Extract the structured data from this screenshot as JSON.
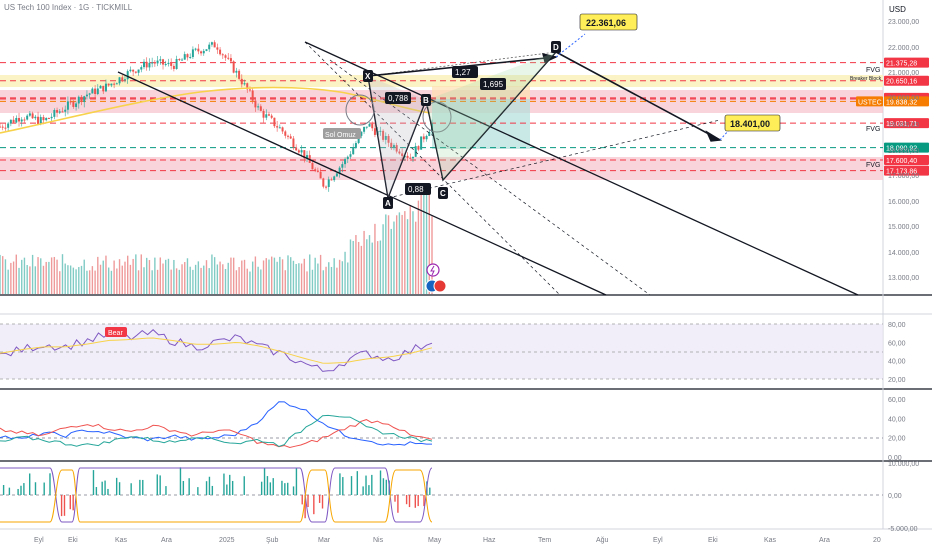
{
  "header": {
    "title": "US Tech 100 Index · 1G · TICKMILL",
    "currency": "USD"
  },
  "colors": {
    "up": "#26a69a",
    "down": "#ef5350",
    "sma": "#f7d24a",
    "rsi": "#7e57c2",
    "rsi_ma": "#f7d24a",
    "macd_blue": "#2962ff",
    "red_line": "#f23645",
    "green_line": "#089981",
    "zone_red": "#f7c6cd",
    "zone_yellow": "#fbf2c6",
    "target_bg": "#ffee58"
  },
  "chart_data": [
    {
      "type": "line",
      "name": "price",
      "title": "US Tech 100 Index · 1G · TICKMILL",
      "x_tick_labels": [
        "Eyl",
        "Eki",
        "Kas",
        "Ara",
        "2025",
        "Şub",
        "Mar",
        "Nis",
        "May",
        "Haz",
        "Tem",
        "Ağu",
        "Eyl",
        "Eki",
        "Kas",
        "Ara",
        "20"
      ],
      "y_tick_labels": [
        "23.000,00",
        "22.000,00",
        "21.000,00",
        "20.000,00",
        "19.000,00",
        "18.000,00",
        "17.000,00",
        "16.000,00",
        "15.000,00",
        "14.000,00",
        "13.000,00"
      ],
      "ylim": [
        12000,
        23500
      ],
      "log_scale": true,
      "price_path_approx": [
        18900,
        19300,
        19100,
        19600,
        20100,
        20450,
        21000,
        21400,
        21250,
        21800,
        22100,
        20900,
        19500,
        18800,
        17900,
        16600,
        17600,
        19000,
        18300,
        17700,
        19000
      ],
      "level_lines": [
        {
          "label": "21.375,28",
          "value": 21375.28,
          "color": "#f23645"
        },
        {
          "label": "20.650,16",
          "value": 20650.16,
          "color": "#f23645"
        },
        {
          "label": "19.967,70",
          "value": 19967.7,
          "color": "#f23645"
        },
        {
          "label": "19.925,05",
          "value": 19925.05,
          "color": "#f23645"
        },
        {
          "label": "19.838,32",
          "value": 19838.32,
          "color": "#f57c00"
        },
        {
          "label": "19.031,71",
          "value": 19031.71,
          "color": "#f23645"
        },
        {
          "label": "18.090,92",
          "value": 18090.92,
          "color": "#089981"
        },
        {
          "label": "17.600,40",
          "value": 17600.4,
          "color": "#f23645"
        },
        {
          "label": "17.173,86",
          "value": 17173.86,
          "color": "#f23645"
        }
      ],
      "side_labels": [
        "FVG",
        "Breaker Block",
        "FVG",
        "FVG"
      ],
      "symbol_tag": "USTEC",
      "harmonic_points": [
        {
          "name": "X",
          "value": 20600
        },
        {
          "name": "A",
          "value": 16200
        },
        {
          "name": "B",
          "value": 19750
        },
        {
          "name": "C",
          "value": 16900
        },
        {
          "name": "D",
          "value": 22361
        }
      ],
      "ratios": [
        "0,788",
        "0,88",
        "1,27",
        "1,695"
      ],
      "annotation": "Sol Omuz",
      "targets": [
        "22.361,06",
        "18.401,00"
      ]
    },
    {
      "type": "line",
      "name": "rsi",
      "y_tick_labels": [
        "80,00",
        "60,00",
        "40,00",
        "20,00"
      ],
      "ylim": [
        15,
        85
      ],
      "series": [
        {
          "values": [
            45,
            52,
            58,
            55,
            62,
            68,
            65,
            70,
            62,
            55,
            60,
            65,
            55,
            48,
            38,
            28,
            40,
            48,
            42,
            50,
            62
          ]
        },
        {
          "values": [
            48,
            52,
            55,
            55,
            58,
            62,
            63,
            65,
            62,
            58,
            58,
            60,
            56,
            50,
            43,
            37,
            38,
            42,
            44,
            48,
            54
          ]
        }
      ],
      "badge": "Bear"
    },
    {
      "type": "line",
      "name": "dmi",
      "y_tick_labels": [
        "60,00",
        "40,00",
        "20,00",
        "0,00"
      ],
      "ylim": [
        0,
        65
      ],
      "series": [
        {
          "values": [
            22,
            18,
            25,
            22,
            28,
            25,
            20,
            18,
            22,
            18,
            20,
            24,
            38,
            58,
            50,
            35,
            22,
            18,
            12,
            14,
            12
          ]
        },
        {
          "values": [
            28,
            25,
            22,
            30,
            35,
            30,
            26,
            32,
            28,
            22,
            28,
            25,
            15,
            10,
            12,
            20,
            30,
            38,
            35,
            22,
            18
          ]
        },
        {
          "values": [
            15,
            20,
            18,
            14,
            12,
            15,
            22,
            18,
            15,
            22,
            18,
            14,
            18,
            12,
            28,
            45,
            42,
            30,
            24,
            20,
            15
          ]
        }
      ]
    },
    {
      "type": "bar",
      "name": "oscillator",
      "y_tick_labels": [
        "10.000,00",
        "0,00",
        "-5.000,00"
      ],
      "ylim": [
        -5200,
        10200
      ]
    }
  ]
}
